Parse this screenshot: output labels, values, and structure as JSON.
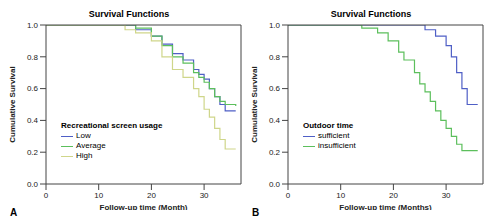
{
  "chart_data": [
    {
      "type": "step",
      "title": "Survival Functions",
      "annotations": [
        "A"
      ],
      "legend_title": "Recreational screen usage",
      "x_label": "Follow-up time (Month)",
      "y_label": "Cumulative Survival",
      "x": [
        0,
        15,
        17,
        20,
        22,
        24,
        26,
        28,
        29,
        30,
        31,
        32,
        33,
        34,
        36
      ],
      "series": [
        {
          "name": "Low",
          "color": "#4f5fc6",
          "values": [
            1,
            1,
            0.97,
            0.93,
            0.88,
            0.82,
            0.78,
            0.72,
            0.69,
            0.66,
            0.6,
            0.55,
            0.5,
            0.46,
            0.46
          ]
        },
        {
          "name": "Average",
          "color": "#5cbf5c",
          "values": [
            1,
            1,
            0.98,
            0.93,
            0.87,
            0.8,
            0.76,
            0.7,
            0.67,
            0.64,
            0.6,
            0.55,
            0.52,
            0.5,
            0.49
          ]
        },
        {
          "name": "High",
          "color": "#cfd68a",
          "values": [
            1,
            0.97,
            0.95,
            0.9,
            0.8,
            0.72,
            0.67,
            0.6,
            0.55,
            0.47,
            0.42,
            0.35,
            0.28,
            0.22,
            0.22
          ]
        }
      ],
      "xlim": [
        0,
        37
      ],
      "xticks": [
        0,
        10,
        20,
        30
      ],
      "ylim": [
        0,
        1
      ],
      "yticks": [
        {
          "value": 0,
          "label": "0.0"
        },
        {
          "value": 0.2,
          "label": "0.2"
        },
        {
          "value": 0.4,
          "label": "0.4"
        },
        {
          "value": 0.6,
          "label": "0.6"
        },
        {
          "value": 0.8,
          "label": "0.8"
        },
        {
          "value": 1,
          "label": "1.0"
        }
      ]
    },
    {
      "type": "step",
      "title": "Survival Functions",
      "annotations": [
        "B"
      ],
      "legend_title": "Outdoor time",
      "x_label": "Follow-up time (Months)",
      "y_label": "Cumulative Survival",
      "x": [
        0,
        14,
        17,
        19,
        21,
        22,
        24,
        25,
        26,
        27,
        28,
        29,
        30,
        31,
        32,
        33,
        34,
        36
      ],
      "series": [
        {
          "name": "sufficient",
          "color": "#4f5fc6",
          "values": [
            1,
            1,
            1,
            1,
            1,
            1,
            1,
            1,
            0.97,
            0.97,
            0.93,
            0.93,
            0.87,
            0.8,
            0.7,
            0.6,
            0.5,
            0.5
          ]
        },
        {
          "name": "insufficient",
          "color": "#5cbf5c",
          "values": [
            1,
            0.98,
            0.95,
            0.9,
            0.83,
            0.78,
            0.7,
            0.63,
            0.58,
            0.52,
            0.46,
            0.4,
            0.35,
            0.3,
            0.25,
            0.21,
            0.21,
            0.21
          ]
        }
      ],
      "xlim": [
        0,
        37
      ],
      "xticks": [
        0,
        10,
        20,
        30
      ],
      "ylim": [
        0,
        1
      ],
      "yticks": [
        {
          "value": 0,
          "label": "0.0"
        },
        {
          "value": 0.2,
          "label": "0.2"
        },
        {
          "value": 0.4,
          "label": "0.4"
        },
        {
          "value": 0.6,
          "label": "0.6"
        },
        {
          "value": 0.8,
          "label": "0.8"
        },
        {
          "value": 1,
          "label": "1.0"
        }
      ]
    }
  ]
}
